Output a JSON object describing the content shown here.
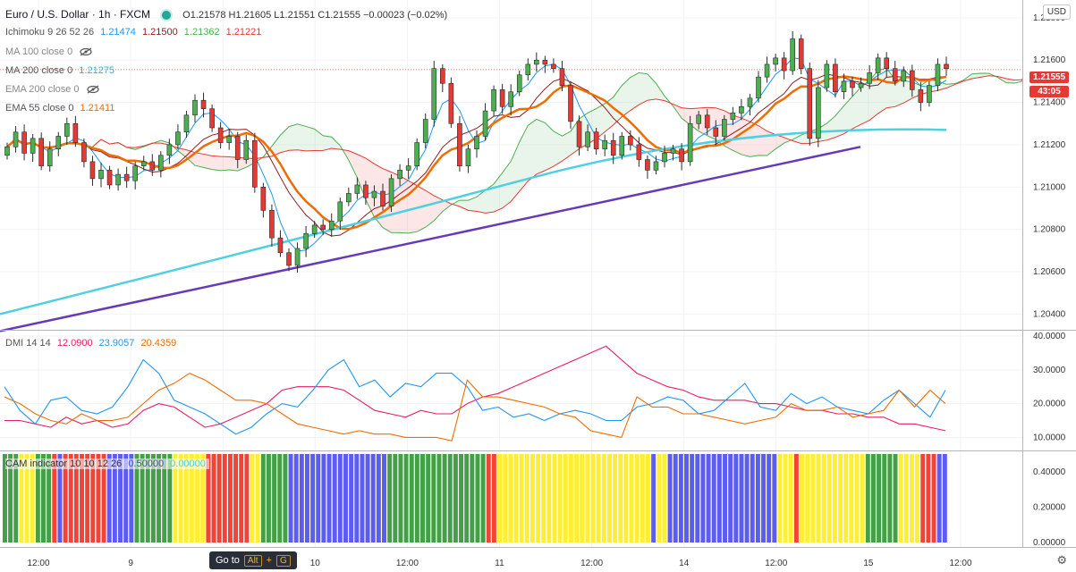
{
  "header": {
    "symbol": "Euro / U.S. Dollar · 1h · FXCM",
    "ohlc": "O1.21578  H1.21605  L1.21551  C1.21555  −0.00023 (−0.02%)"
  },
  "indicators": {
    "ichimoku": {
      "label": "Ichimoku 9 26 52 26",
      "vals": [
        "1.21474",
        "1.21500",
        "1.21362",
        "1.21221"
      ],
      "colors": [
        "#2196f3",
        "#8b1a1a",
        "#4caf50",
        "#e53935"
      ]
    },
    "ma100": {
      "label": "MA 100 close 0"
    },
    "ma200": {
      "label": "MA 200 close 0",
      "val": "1.21275",
      "color": "#4dd0e1"
    },
    "ema200": {
      "label": "EMA 200 close 0"
    },
    "ema55": {
      "label": "EMA 55 close 0",
      "val": "1.21411",
      "color": "#ef6c00"
    },
    "dmi": {
      "label": "DMI 14 14",
      "vals": [
        "12.0900",
        "23.9057",
        "20.4359"
      ],
      "colors": [
        "#e91e63",
        "#2196f3",
        "#ef6c00"
      ]
    },
    "cam": {
      "label": "CAM indicator 10 10 12 26",
      "vals": [
        "0.50000",
        "0.00000"
      ],
      "colors": [
        "#3f51b5",
        "#4dd0e1"
      ]
    }
  },
  "price_tags": {
    "last": "1.21555",
    "countdown": "43:05",
    "currency": "USD"
  },
  "footer": {
    "goto": "Go to",
    "key1": "Alt",
    "plus": "+",
    "key2": "G"
  },
  "colors": {
    "up": "#4caf50",
    "down": "#e53935",
    "trend": "#673ab7",
    "ma200": "#4dd0e1",
    "ema55": "#ef6c00",
    "cam_green": "#43a047",
    "cam_yellow": "#ffee33",
    "cam_red": "#f44336",
    "cam_blue": "#5c5cf0"
  },
  "chart_data": [
    {
      "type": "candlestick",
      "title": "Euro / U.S. Dollar · 1h · FXCM",
      "x_ticks": [
        "12:00",
        "9",
        "12:00",
        "10",
        "12:00",
        "11",
        "12:00",
        "14",
        "12:00",
        "15",
        "12:00"
      ],
      "y_ticks": [
        "1.21800",
        "1.21600",
        "1.21400",
        "1.21200",
        "1.21000",
        "1.20800",
        "1.20600",
        "1.20400"
      ],
      "ylim": [
        1.2033,
        1.2185
      ],
      "closes": [
        1.2119,
        1.2126,
        1.2116,
        1.2123,
        1.211,
        1.2118,
        1.2124,
        1.213,
        1.2121,
        1.2112,
        1.2104,
        1.2108,
        1.2101,
        1.2106,
        1.2103,
        1.211,
        1.2112,
        1.2108,
        1.2115,
        1.212,
        1.2126,
        1.2134,
        1.2141,
        1.2137,
        1.2128,
        1.2121,
        1.2124,
        1.2113,
        1.2122,
        1.21,
        1.2089,
        1.2076,
        1.2069,
        1.2063,
        1.2071,
        1.2078,
        1.2082,
        1.208,
        1.2084,
        1.2093,
        1.2097,
        1.2101,
        1.2095,
        1.2098,
        1.2091,
        1.2104,
        1.2108,
        1.211,
        1.2121,
        1.2132,
        1.2156,
        1.2149,
        1.213,
        1.211,
        1.2118,
        1.2124,
        1.2136,
        1.2146,
        1.2138,
        1.2145,
        1.2153,
        1.2158,
        1.216,
        1.2158,
        1.2156,
        1.2148,
        1.2131,
        1.2119,
        1.2126,
        1.2118,
        1.2122,
        1.2115,
        1.2124,
        1.212,
        1.2113,
        1.2108,
        1.2112,
        1.2116,
        1.2118,
        1.2112,
        1.213,
        1.2134,
        1.2128,
        1.2124,
        1.2132,
        1.2135,
        1.2138,
        1.2142,
        1.2152,
        1.2158,
        1.2161,
        1.2155,
        1.217,
        1.2156,
        1.2123,
        1.2147,
        1.2158,
        1.2145,
        1.215,
        1.2147,
        1.2149,
        1.2154,
        1.2161,
        1.2156,
        1.215,
        1.2155,
        1.2146,
        1.214,
        1.2148,
        1.2158,
        1.2156
      ],
      "ma200": {
        "start": 1.204,
        "mid": 1.2077,
        "end": 1.2127
      },
      "trendline": {
        "start": 1.2032,
        "end": 1.2119
      }
    },
    {
      "type": "line",
      "title": "DMI 14 14",
      "y_ticks": [
        "40.0000",
        "30.0000",
        "20.0000",
        "10.0000"
      ],
      "ylim": [
        8,
        40
      ],
      "series": [
        {
          "name": "12.0900",
          "values": [
            15,
            15,
            14,
            13,
            16,
            14,
            15,
            13,
            14,
            18,
            20,
            19,
            16,
            13,
            14,
            16,
            18,
            20,
            24,
            25,
            25,
            25,
            24,
            21,
            18,
            17,
            16,
            18,
            17,
            17,
            20,
            22,
            23,
            25,
            27,
            29,
            31,
            33,
            35,
            37,
            33,
            29,
            27,
            25,
            24,
            22,
            21,
            21,
            21,
            20,
            20,
            19,
            18,
            18,
            17,
            17,
            16,
            16,
            14,
            14,
            13,
            12
          ]
        },
        {
          "name": "23.9057",
          "values": [
            25,
            18,
            14,
            21,
            22,
            18,
            17,
            19,
            25,
            33,
            29,
            21,
            19,
            17,
            14,
            11,
            13,
            17,
            20,
            19,
            24,
            30,
            33,
            25,
            27,
            22,
            26,
            25,
            29,
            29,
            25,
            18,
            19,
            16,
            17,
            15,
            17,
            18,
            17,
            15,
            15,
            19,
            20,
            22,
            21,
            17,
            18,
            22,
            26,
            19,
            18,
            23,
            20,
            22,
            19,
            18,
            17,
            21,
            24,
            20,
            16,
            24
          ]
        },
        {
          "name": "20.4359",
          "values": [
            22,
            20,
            17,
            15,
            14,
            17,
            15,
            15,
            16,
            20,
            24,
            26,
            29,
            27,
            24,
            21,
            21,
            20,
            17,
            14,
            13,
            12,
            11,
            12,
            11,
            11,
            10,
            10,
            10,
            9,
            27,
            22,
            22,
            21,
            20,
            19,
            17,
            16,
            12,
            11,
            10,
            22,
            19,
            19,
            17,
            17,
            16,
            15,
            14,
            15,
            16,
            20,
            18,
            18,
            19,
            16,
            17,
            18,
            24,
            19,
            24,
            20
          ]
        }
      ]
    },
    {
      "type": "bar",
      "title": "CAM indicator 10 10 12 26",
      "y_ticks": [
        "0.40000",
        "0.20000",
        "0.00000"
      ],
      "ylim": [
        0,
        0.5
      ],
      "colors_sequence": "GGGYYYGGGRBRRRRRRRRBBBBBGGGGGGGYYYYYYRRRRRRRRYYGGGGGBBBBBBBBBBBBBBBBBBGGGGGGGGGGGGGGGGGGRRYYYYYYYYYYYYYYYYYYYYYYYYYYYYBYYBBBBBBBBBBBBBBBBBBBBYYYRYYYYYYYYYYYYGGGGGGYYYYRRRBB"
    }
  ]
}
